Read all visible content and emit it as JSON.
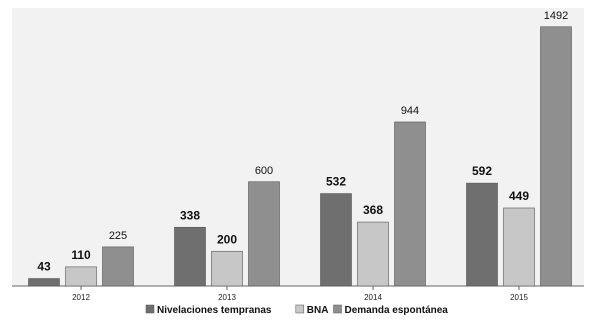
{
  "chart_data": {
    "type": "bar",
    "categories": [
      "2012",
      "2013",
      "2014",
      "2015"
    ],
    "series": [
      {
        "name": "Nivelaciones tempranas",
        "values": [
          43,
          338,
          532,
          592
        ],
        "color": "#6f6f6f",
        "label_weight": "bold"
      },
      {
        "name": "BNA",
        "values": [
          110,
          200,
          368,
          449
        ],
        "color": "#c7c7c7",
        "label_weight": "bold"
      },
      {
        "name": "Demanda espontánea",
        "values": [
          225,
          600,
          944,
          1492
        ],
        "color": "#8f8f8f",
        "label_weight": "normal"
      }
    ],
    "ylim": [
      0,
      1600
    ],
    "grid": false,
    "legend": "bottom"
  }
}
